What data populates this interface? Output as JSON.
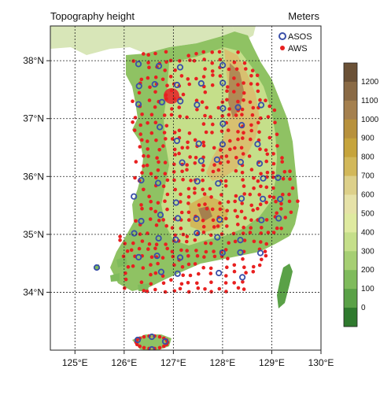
{
  "map": {
    "title": "Topography height",
    "units": "Meters",
    "lon_range": [
      124.5,
      130.0
    ],
    "lat_range": [
      33.0,
      38.6
    ],
    "lon_ticks": [
      125,
      126,
      127,
      128,
      129,
      130
    ],
    "lat_ticks": [
      34,
      35,
      36,
      37,
      38
    ],
    "lon_labels": [
      "125°E",
      "126°E",
      "127°E",
      "128°E",
      "129°E",
      "130°E"
    ],
    "lat_labels": [
      "34°N",
      "35°N",
      "36°N",
      "37°N",
      "38°N"
    ],
    "grid": "dashed"
  },
  "legend": {
    "asos": "ASOS",
    "aws": "AWS",
    "asos_color": "#3a4fa8",
    "aws_color": "#e82020"
  },
  "colorbar": {
    "levels": [
      "1200",
      "1100",
      "1000",
      "900",
      "800",
      "700",
      "600",
      "500",
      "400",
      "300",
      "200",
      "100",
      "0"
    ],
    "colors": [
      "#6b5136",
      "#8a6a45",
      "#a5804e",
      "#b8913c",
      "#c6a43c",
      "#d2b85a",
      "#ddd08a",
      "#e6e2a8",
      "#dfeaa0",
      "#c5df8a",
      "#a6cf73",
      "#7fbb5c",
      "#5aa147",
      "#2f7a2e"
    ]
  },
  "colors": {
    "ocean": "#ffffff",
    "land_low": "#7fbb5c",
    "land_mid": "#c5df8a",
    "land_high": "#d2b85a",
    "land_peak": "#a5804e",
    "north_land": "#d8e6b8"
  }
}
